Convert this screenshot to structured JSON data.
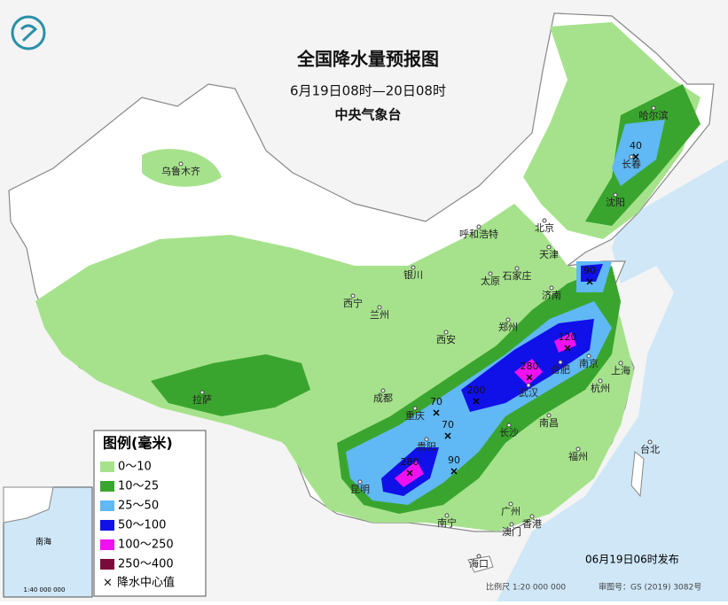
{
  "header": {
    "title": "全国降水量预报图",
    "period": "6月19日08时—20日08时",
    "agency": "中央气象台"
  },
  "legend": {
    "title": "图例(毫米)",
    "items": [
      {
        "label": "0～10",
        "color": "#a6e28c"
      },
      {
        "label": "10～25",
        "color": "#3aa52e"
      },
      {
        "label": "25～50",
        "color": "#60b8f4"
      },
      {
        "label": "50～100",
        "color": "#1010e8"
      },
      {
        "label": "100～250",
        "color": "#f010f0"
      },
      {
        "label": "250～400",
        "color": "#7a0a3a"
      }
    ],
    "center_marker": "×",
    "center_label": "降水中心值"
  },
  "cities": [
    "哈尔滨",
    "长春",
    "沈阳",
    "乌鲁木齐",
    "呼和浩特",
    "北京",
    "天津",
    "石家庄",
    "太原",
    "济南",
    "银川",
    "西宁",
    "兰州",
    "西安",
    "郑州",
    "合肥",
    "南京",
    "上海",
    "杭州",
    "武汉",
    "成都",
    "重庆",
    "长沙",
    "南昌",
    "福州",
    "台北",
    "拉萨",
    "昆明",
    "贵阳",
    "南宁",
    "广州",
    "香港",
    "澳门",
    "海口"
  ],
  "centers": [
    40,
    90,
    120,
    280,
    200,
    70,
    70,
    280,
    90
  ],
  "inset": {
    "label": "南海",
    "scale": "1:40 000 000"
  },
  "footer": {
    "release": "06月19日06时发布",
    "scale": "比例尺 1:20 000 000",
    "review": "审图号：GS (2019) 3082号"
  }
}
